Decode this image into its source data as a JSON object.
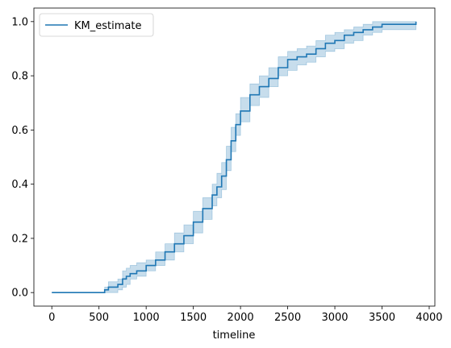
{
  "chart_data": {
    "type": "line",
    "title": "",
    "xlabel": "timeline",
    "ylabel": "",
    "xlim": [
      -190,
      4060
    ],
    "ylim": [
      -0.05,
      1.05
    ],
    "x_ticks": [
      0,
      500,
      1000,
      1500,
      2000,
      2500,
      3000,
      3500,
      4000
    ],
    "x_tick_labels": [
      "0",
      "500",
      "1000",
      "1500",
      "2000",
      "2500",
      "3000",
      "3500",
      "4000"
    ],
    "y_ticks": [
      0.0,
      0.2,
      0.4,
      0.6,
      0.8,
      1.0
    ],
    "y_tick_labels": [
      "0.0",
      "0.2",
      "0.4",
      "0.6",
      "0.8",
      "1.0"
    ],
    "grid": false,
    "legend_position": "top-left",
    "step": true,
    "series": [
      {
        "name": "KM_estimate",
        "color": "#1f77b4",
        "band_color": "#1f77b4",
        "x": [
          0,
          560,
          600,
          700,
          750,
          790,
          830,
          900,
          1000,
          1100,
          1200,
          1300,
          1400,
          1500,
          1600,
          1700,
          1750,
          1800,
          1850,
          1900,
          1950,
          2000,
          2100,
          2200,
          2300,
          2400,
          2500,
          2600,
          2700,
          2800,
          2900,
          3000,
          3100,
          3200,
          3300,
          3400,
          3500,
          3860
        ],
        "y": [
          0.0,
          0.01,
          0.02,
          0.03,
          0.05,
          0.06,
          0.07,
          0.08,
          0.1,
          0.12,
          0.15,
          0.18,
          0.21,
          0.26,
          0.31,
          0.36,
          0.39,
          0.43,
          0.49,
          0.56,
          0.62,
          0.67,
          0.73,
          0.76,
          0.79,
          0.83,
          0.86,
          0.87,
          0.88,
          0.9,
          0.92,
          0.93,
          0.95,
          0.96,
          0.97,
          0.98,
          0.99,
          1.0
        ],
        "lower": [
          0.0,
          0.0,
          0.0,
          0.01,
          0.02,
          0.03,
          0.05,
          0.06,
          0.08,
          0.1,
          0.12,
          0.15,
          0.18,
          0.22,
          0.27,
          0.32,
          0.35,
          0.38,
          0.45,
          0.52,
          0.58,
          0.63,
          0.69,
          0.72,
          0.76,
          0.8,
          0.82,
          0.84,
          0.85,
          0.87,
          0.89,
          0.9,
          0.92,
          0.93,
          0.95,
          0.96,
          0.97,
          0.97
        ],
        "upper": [
          0.0,
          0.02,
          0.04,
          0.05,
          0.08,
          0.09,
          0.1,
          0.11,
          0.12,
          0.15,
          0.18,
          0.22,
          0.25,
          0.3,
          0.35,
          0.4,
          0.44,
          0.48,
          0.54,
          0.61,
          0.66,
          0.72,
          0.77,
          0.8,
          0.83,
          0.87,
          0.89,
          0.9,
          0.91,
          0.93,
          0.95,
          0.96,
          0.97,
          0.98,
          0.99,
          1.0,
          1.0,
          1.0
        ]
      }
    ]
  }
}
